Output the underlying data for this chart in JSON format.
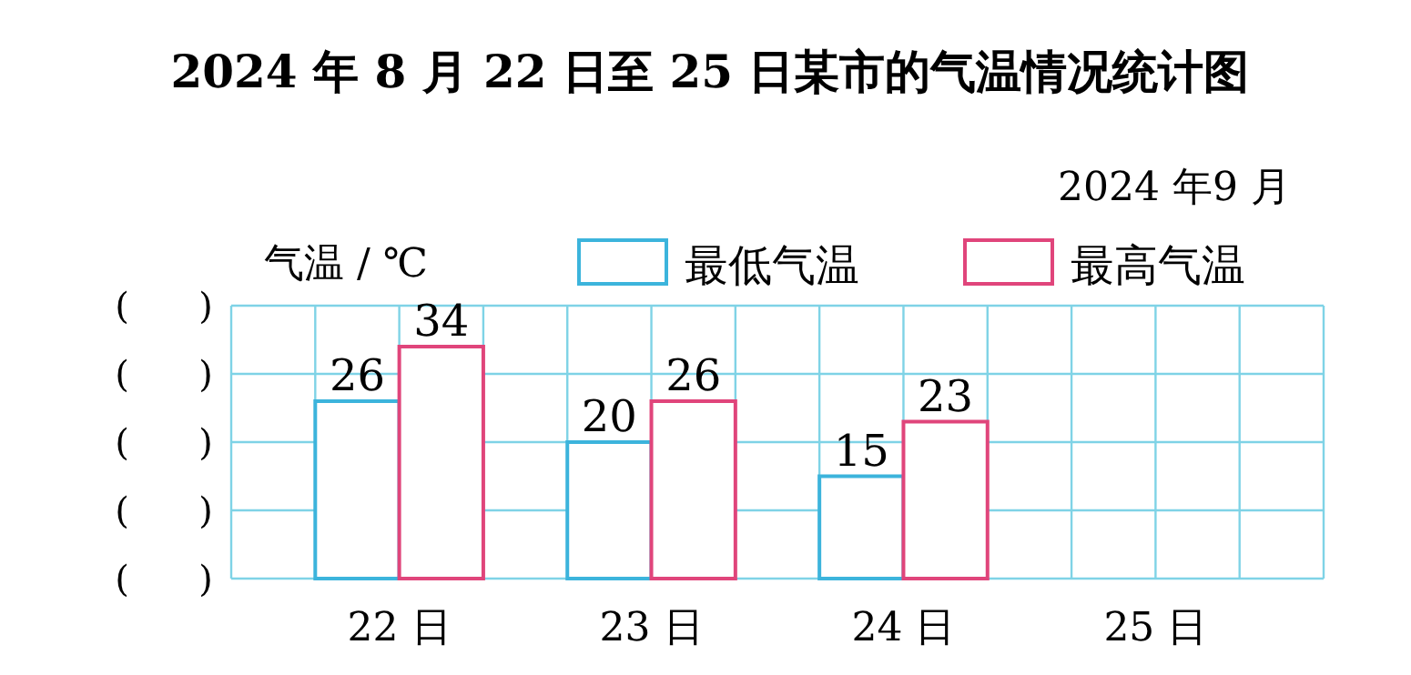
{
  "chart_data": {
    "type": "bar",
    "title": "2024 年 8 月 22 日至 25 日某市的气温情况统计图",
    "ylabel": "气温 / ℃",
    "annotations": [
      "2024 年9 月",
      "(      )",
      "(      )",
      "(      )",
      "(      )",
      "(      )"
    ],
    "categories": [
      "22 日",
      "23 日",
      "24 日",
      "25 日"
    ],
    "series": [
      {
        "name": "最低气温",
        "color": "#3cb4dc",
        "values": [
          26,
          20,
          15,
          null
        ]
      },
      {
        "name": "最高气温",
        "color": "#e0457b",
        "values": [
          34,
          26,
          23,
          null
        ]
      }
    ],
    "ylim": [
      0,
      40
    ],
    "grid": true,
    "legend": "top right",
    "data_labels": true
  }
}
